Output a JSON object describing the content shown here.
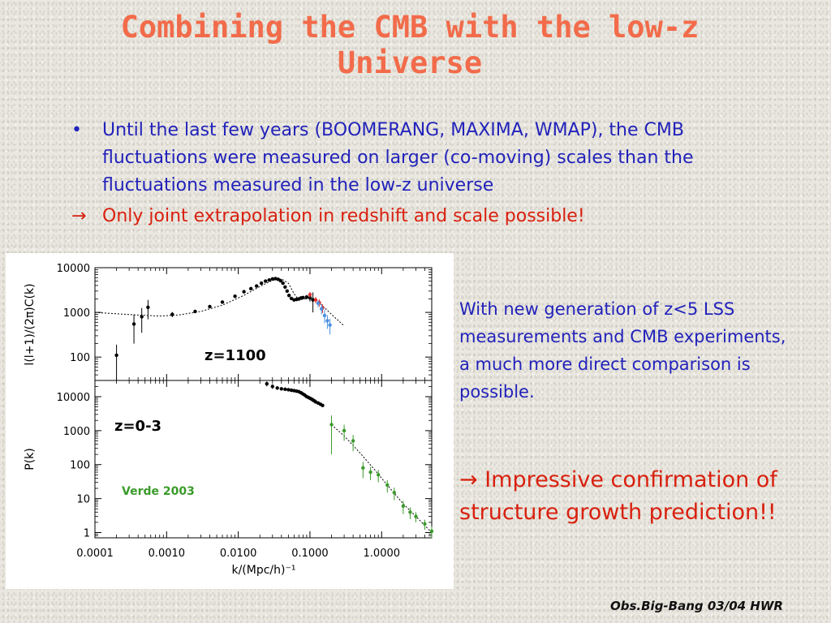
{
  "slide": {
    "title_line1": "Combining the CMB with the low-z",
    "title_line2": "Universe",
    "bullet_marker": "•",
    "bullet_text": "Until the last few years (BOOMERANG, MAXIMA, WMAP), the CMB fluctuations were measured on larger (co-moving) scales than the fluctuations measured in the low-z universe",
    "arrow_symbol": "→",
    "arrow_text": "Only joint extrapolation in redshift and scale possible!",
    "side_note": "With new generation of z<5 LSS measurements and CMB experiments, a much more direct comparison is possible.",
    "conclusion_arrow": "→",
    "conclusion_text": "Impressive confirmation of structure growth prediction!!",
    "footer": "Obs.Big-Bang 03/04 HWR"
  },
  "colors": {
    "title": "#f26b4a",
    "blue_text": "#2222bb",
    "red_text": "#d9200f",
    "cmb_blue_points": "#4a90e0",
    "cmb_red_points": "#e03030",
    "lss_green": "#3a9a2a"
  },
  "chart_data": [
    {
      "type": "scatter",
      "title": "",
      "xlabel": "",
      "ylabel": "l(l+1)/(2π)C(k)",
      "yscale": "log",
      "xscale": "log",
      "xlim": [
        0.0001,
        5.0
      ],
      "ylim": [
        30,
        10000
      ],
      "yticks": [
        "10000",
        "1000",
        "100"
      ],
      "ytick_values": [
        10000,
        1000,
        100
      ],
      "annotation": "z=1100",
      "model_curve": {
        "x": [
          0.0001,
          0.0002,
          0.0004,
          0.0008,
          0.0015,
          0.003,
          0.006,
          0.012,
          0.02,
          0.03,
          0.04,
          0.05,
          0.06,
          0.07,
          0.085,
          0.1,
          0.12,
          0.15,
          0.2,
          0.3
        ],
        "y": [
          1000,
          930,
          870,
          830,
          880,
          1050,
          1450,
          2400,
          3800,
          5200,
          5600,
          4500,
          2600,
          1900,
          2000,
          2300,
          1900,
          1400,
          900,
          500
        ]
      },
      "series": [
        {
          "name": "",
          "color": "black",
          "x": [
            0.0002,
            0.00035,
            0.00045,
            0.00055,
            0.0012,
            0.0025,
            0.004,
            0.006,
            0.009,
            0.012,
            0.015,
            0.018,
            0.021,
            0.024,
            0.027,
            0.03,
            0.033,
            0.036,
            0.039,
            0.042,
            0.045,
            0.048,
            0.051,
            0.055,
            0.06,
            0.065,
            0.07,
            0.075,
            0.08,
            0.09,
            0.1,
            0.11
          ],
          "y": [
            110,
            550,
            800,
            1300,
            900,
            1050,
            1350,
            1700,
            2300,
            2900,
            3400,
            3900,
            4500,
            5000,
            5300,
            5600,
            5700,
            5500,
            5100,
            4500,
            3700,
            3000,
            2400,
            2050,
            1900,
            1950,
            2000,
            2100,
            2150,
            2200,
            2100,
            1900
          ],
          "yerr": [
            80,
            350,
            450,
            600,
            120,
            80,
            70,
            60,
            60,
            60,
            60,
            60,
            70,
            80,
            80,
            90,
            100,
            100,
            100,
            100,
            100,
            100,
            100,
            100,
            100,
            120,
            140,
            150,
            160,
            250,
            350,
            900
          ]
        },
        {
          "name": "",
          "color": "red",
          "x": [
            0.1,
            0.12,
            0.135,
            0.15
          ],
          "y": [
            2500,
            1900,
            1650,
            1250
          ],
          "yerr": [
            350,
            300,
            300,
            280
          ]
        },
        {
          "name": "",
          "color": "blue",
          "x": [
            0.13,
            0.145,
            0.16,
            0.175,
            0.19
          ],
          "y": [
            1600,
            1200,
            850,
            650,
            520
          ],
          "yerr": [
            300,
            300,
            280,
            220,
            200
          ]
        }
      ]
    },
    {
      "type": "scatter",
      "title": "",
      "xlabel": "k/(Mpc/h)⁻¹",
      "ylabel": "P(k)",
      "yscale": "log",
      "xscale": "log",
      "xlim": [
        0.0001,
        5.0
      ],
      "ylim": [
        0.7,
        30000
      ],
      "yticks": [
        "10000",
        "1000",
        "100",
        "10",
        "1"
      ],
      "ytick_values": [
        10000,
        1000,
        100,
        10,
        1
      ],
      "xticks": [
        "0.0001",
        "0.0010",
        "0.0100",
        "0.1000",
        "1.0000"
      ],
      "xtick_values": [
        0.0001,
        0.001,
        0.01,
        0.1,
        1.0
      ],
      "annotations": [
        "z=0-3",
        "Verde 2003"
      ],
      "model_curve": {
        "x": [
          0.2,
          0.3,
          0.5,
          0.8,
          1.2,
          2.0,
          3.0,
          5.0
        ],
        "y": [
          1500,
          700,
          220,
          70,
          25,
          7,
          3,
          1
        ]
      },
      "series": [
        {
          "name": "",
          "color": "black",
          "x": [
            0.025,
            0.03,
            0.035,
            0.04,
            0.045,
            0.05,
            0.055,
            0.06,
            0.065,
            0.07,
            0.075,
            0.08,
            0.085,
            0.09,
            0.095,
            0.1,
            0.105,
            0.11,
            0.115,
            0.12,
            0.13,
            0.14,
            0.15
          ],
          "y": [
            24000,
            20000,
            18000,
            17000,
            16500,
            16000,
            15500,
            15000,
            14500,
            14000,
            13000,
            12000,
            11000,
            10000,
            9500,
            9000,
            8500,
            8000,
            7500,
            7000,
            6500,
            6000,
            5500
          ],
          "yerr": [
            4000,
            3000,
            2000,
            1500,
            1200,
            1000,
            900,
            800,
            800,
            700,
            700,
            700,
            600,
            600,
            600,
            600,
            500,
            500,
            500,
            500,
            500,
            500,
            500
          ]
        },
        {
          "name": "",
          "color": "green",
          "x": [
            0.2,
            0.3,
            0.4,
            0.55,
            0.7,
            0.9,
            1.2,
            1.5,
            2.0,
            2.5,
            3.0,
            4.0,
            5.0
          ],
          "y": [
            1500,
            1000,
            500,
            80,
            60,
            50,
            25,
            15,
            6,
            4,
            3,
            1.8,
            1.1
          ],
          "yerr": [
            1300,
            500,
            250,
            40,
            25,
            20,
            10,
            6,
            2.5,
            1.5,
            1.0,
            0.6,
            0.4
          ]
        }
      ]
    }
  ]
}
